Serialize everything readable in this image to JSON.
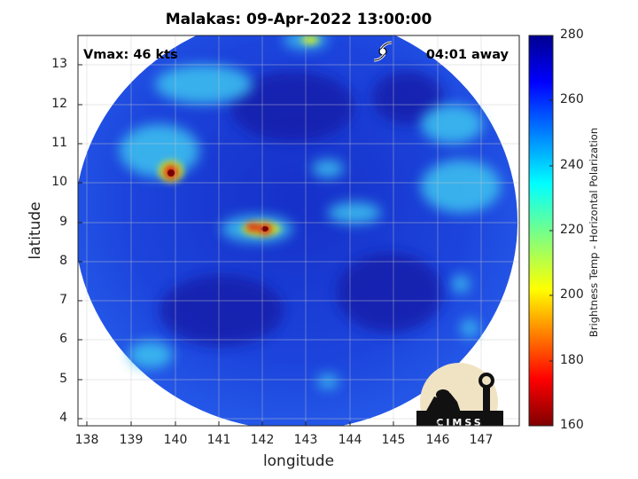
{
  "title": "Malakas: 09-Apr-2022 13:00:00",
  "xlabel": "longitude",
  "ylabel": "latitude",
  "xticks": [
    "138",
    "139",
    "140",
    "141",
    "142",
    "143",
    "144",
    "145",
    "146",
    "147"
  ],
  "yticks": [
    "13",
    "12",
    "11",
    "10",
    "9",
    "8",
    "7",
    "6",
    "5",
    "4"
  ],
  "vmax_text": "Vmax: 46 kts",
  "time_away": "04:01 away",
  "colorbar": {
    "label": "Brightness Temp - Horizontal Polarization",
    "ticks": [
      "280",
      "260",
      "240",
      "220",
      "200",
      "180",
      "160"
    ],
    "range": [
      160,
      280
    ],
    "colormap": "jet"
  },
  "logo_text": "CIMSS",
  "colors": {
    "background_swath": "#1c3fd8",
    "deep_blue": "#12189a",
    "cyan": "#38c8f0",
    "yellow": "#f5e31a",
    "red": "#c81808",
    "dark_red": "#7a0000"
  },
  "chart_data": {
    "type": "heatmap",
    "title": "Malakas: 09-Apr-2022 13:00:00",
    "xlabel": "longitude",
    "ylabel": "latitude",
    "xlim": [
      137.8,
      147.8
    ],
    "ylim": [
      3.8,
      13.7
    ],
    "storm_marker": {
      "lon": 144.7,
      "lat": 13.4,
      "symbol": "tropical-storm-icon"
    },
    "features": [
      {
        "lon": 139.9,
        "lat": 10.25,
        "value_K": 175
      },
      {
        "lon": 141.8,
        "lat": 8.9,
        "value_K": 180
      },
      {
        "lon": 142.1,
        "lat": 8.85,
        "value_K": 170
      }
    ],
    "colorbar_range": [
      160,
      280
    ]
  }
}
